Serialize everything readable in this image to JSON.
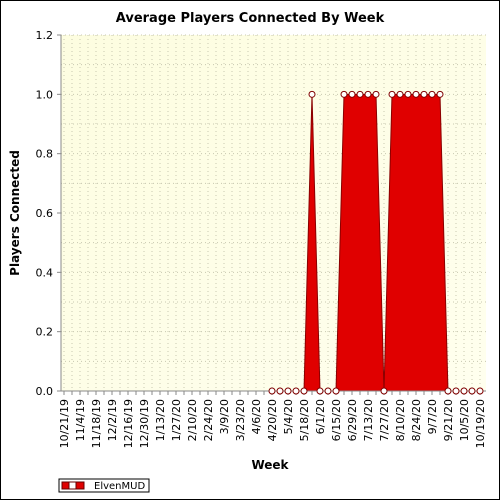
{
  "chart_data": {
    "type": "area",
    "title": "Average Players Connected By Week",
    "xlabel": "Week",
    "ylabel": "Players Connected",
    "ylim": [
      0,
      1.2
    ],
    "yticks": [
      "0.0",
      "0.2",
      "0.4",
      "0.6",
      "0.8",
      "1.0",
      "1.2"
    ],
    "grid": true,
    "legend_position": "bottom-left",
    "x_tick_labels": [
      "10/21/19",
      "11/4/19",
      "11/18/19",
      "12/2/19",
      "12/16/19",
      "12/30/19",
      "1/13/20",
      "1/27/20",
      "2/10/20",
      "2/24/20",
      "3/9/20",
      "3/23/20",
      "4/6/20",
      "4/20/20",
      "5/4/20",
      "5/18/20",
      "6/1/20",
      "6/15/20",
      "6/29/20",
      "7/13/20",
      "7/27/20",
      "8/10/20",
      "8/24/20",
      "9/7/20",
      "9/21/20",
      "10/5/20",
      "10/19/20"
    ],
    "x": [
      "4/20/20",
      "4/27/20",
      "5/4/20",
      "5/11/20",
      "5/18/20",
      "5/25/20",
      "6/1/20",
      "6/8/20",
      "6/15/20",
      "6/22/20",
      "6/29/20",
      "7/6/20",
      "7/13/20",
      "7/20/20",
      "7/27/20",
      "8/3/20",
      "8/10/20",
      "8/17/20",
      "8/24/20",
      "8/31/20",
      "9/7/20",
      "9/14/20",
      "9/21/20",
      "9/28/20",
      "10/5/20",
      "10/12/20",
      "10/19/20"
    ],
    "series": [
      {
        "name": "ElvenMUD",
        "color": "#e00000",
        "values": [
          0,
          0,
          0,
          0,
          0,
          1,
          0,
          0,
          0,
          1,
          1,
          1,
          1,
          1,
          0,
          1,
          1,
          1,
          1,
          1,
          1,
          1,
          0,
          0,
          0,
          0,
          0
        ]
      }
    ]
  }
}
